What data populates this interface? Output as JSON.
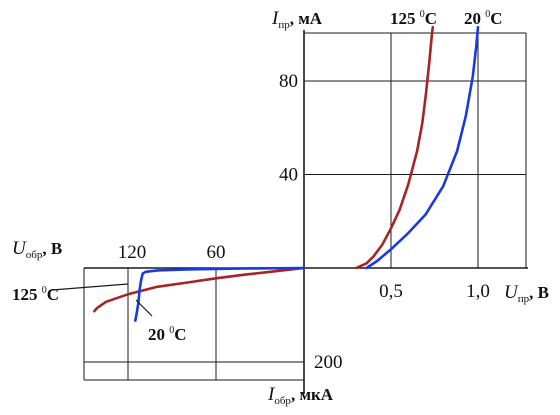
{
  "chart_data": {
    "type": "line",
    "title": "",
    "forward": {
      "ylabel": {
        "symbol": "I",
        "sub": "пр",
        "unit": ", мА"
      },
      "xlabel": {
        "symbol": "U",
        "sub": "пр",
        "unit": ", В"
      },
      "xlim": [
        0,
        1.25
      ],
      "ylim": [
        0,
        110
      ],
      "xticks": [
        "0,5",
        "1,0"
      ],
      "yticks": [
        "40",
        "80"
      ],
      "series": [
        {
          "name": "125 °C",
          "label": {
            "num": "125",
            "deg": "0",
            "unit": "C"
          },
          "color": "#a82424",
          "points": [
            [
              0.3,
              0
            ],
            [
              0.36,
              2
            ],
            [
              0.4,
              5
            ],
            [
              0.45,
              10
            ],
            [
              0.5,
              17
            ],
            [
              0.55,
              25
            ],
            [
              0.6,
              36
            ],
            [
              0.65,
              50
            ],
            [
              0.68,
              62
            ],
            [
              0.7,
              74
            ],
            [
              0.72,
              88
            ],
            [
              0.735,
              100
            ],
            [
              0.74,
              103
            ]
          ]
        },
        {
          "name": "20 °C",
          "label": {
            "num": "20",
            "deg": "0",
            "unit": "C"
          },
          "color": "#1a3ae0",
          "points": [
            [
              0.36,
              0
            ],
            [
              0.42,
              3
            ],
            [
              0.5,
              8
            ],
            [
              0.6,
              15
            ],
            [
              0.7,
              23
            ],
            [
              0.8,
              35
            ],
            [
              0.88,
              50
            ],
            [
              0.93,
              65
            ],
            [
              0.97,
              82
            ],
            [
              0.99,
              95
            ],
            [
              1.0,
              103
            ]
          ]
        }
      ]
    },
    "reverse": {
      "xlabel": {
        "symbol": "U",
        "sub": "обр",
        "unit": ", В"
      },
      "ylabel": {
        "symbol": "I",
        "sub": "обр",
        "unit": ", мкА"
      },
      "xlim": [
        0,
        150
      ],
      "ylim": [
        0,
        225
      ],
      "xticks": [
        "120",
        "60"
      ],
      "yticks": [
        "200"
      ],
      "series": [
        {
          "name": "125 °C",
          "label": {
            "num": "125",
            "deg": "0",
            "unit": "C"
          },
          "color": "#a82424",
          "points": [
            [
              0,
              0
            ],
            [
              20,
              7
            ],
            [
              40,
              14
            ],
            [
              60,
              22
            ],
            [
              80,
              31
            ],
            [
              100,
              40
            ],
            [
              120,
              56
            ],
            [
              135,
              72
            ],
            [
              141,
              85
            ],
            [
              143,
              92
            ]
          ]
        },
        {
          "name": "20 °C",
          "label": {
            "num": "20",
            "deg": "0",
            "unit": "C"
          },
          "color": "#1a3ae0",
          "points": [
            [
              0,
              0
            ],
            [
              40,
              1
            ],
            [
              80,
              3
            ],
            [
              100,
              5
            ],
            [
              108,
              8
            ],
            [
              110,
              12
            ],
            [
              111,
              25
            ],
            [
              112,
              45
            ],
            [
              113,
              75
            ],
            [
              114,
              95
            ],
            [
              115,
              112
            ]
          ]
        }
      ]
    }
  }
}
